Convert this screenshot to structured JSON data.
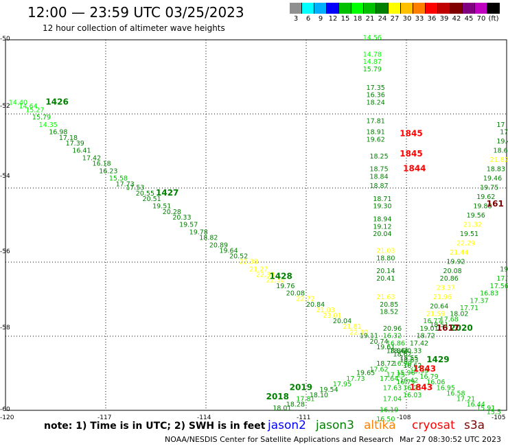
{
  "header": {
    "title": "12:00 — 23:59 UTC 03/25/2023",
    "subtitle": "12 hour collection of altimeter wave heights"
  },
  "legend": {
    "colors": [
      "#909090",
      "#00ffff",
      "#00b0ff",
      "#0000ff",
      "#00c000",
      "#00ff00",
      "#00c000",
      "#008000",
      "#ffff00",
      "#ffc000",
      "#ff8000",
      "#ff0000",
      "#c00000",
      "#800000",
      "#800080",
      "#c000c0",
      "#000000"
    ],
    "labels": [
      "3",
      "6",
      "9",
      "12",
      "15",
      "18",
      "21",
      "24",
      "27",
      "30",
      "33",
      "36",
      "39",
      "42",
      "45",
      "70",
      "(ft)"
    ]
  },
  "axes": {
    "y_labels": [
      "-50",
      "-52",
      "-54",
      "-56",
      "-58",
      "-60"
    ],
    "x_labels": [
      "-120",
      "-117",
      "-114",
      "-111",
      "-108",
      "-105"
    ]
  },
  "footer": {
    "note": "note: 1) Time is in UTC; 2) SWH is in feet",
    "satellites": [
      {
        "name": "jason2",
        "color": "#0000ff"
      },
      {
        "name": "jason3",
        "color": "#008000"
      },
      {
        "name": "altika",
        "color": "#ff8000"
      },
      {
        "name": "cryosat",
        "color": "#ff0000"
      },
      {
        "name": "s3a",
        "color": "#800000"
      }
    ],
    "credit": "NOAA/NESDIS Center for Satellite Applications and Research",
    "timestamp": "Mar 27 08:30:52 UTC 2023"
  },
  "chart_data": {
    "type": "scatter",
    "xlim": [
      -120,
      -105
    ],
    "ylim": [
      -60,
      -50
    ],
    "grid": true,
    "time_labels": [
      {
        "text": "1426",
        "lon": -118.8,
        "lat": -51.75,
        "color": "#008000"
      },
      {
        "text": "1427",
        "lon": -115.5,
        "lat": -54.2,
        "color": "#008000"
      },
      {
        "text": "1428",
        "lon": -112.1,
        "lat": -56.45,
        "color": "#008000"
      },
      {
        "text": "1429",
        "lon": -107.4,
        "lat": -58.7,
        "color": "#008000"
      },
      {
        "text": "2018",
        "lon": -112.2,
        "lat": -59.7,
        "color": "#008000"
      },
      {
        "text": "2019",
        "lon": -111.5,
        "lat": -59.45,
        "color": "#008000"
      },
      {
        "text": "2020",
        "lon": -106.7,
        "lat": -57.85,
        "color": "#008000"
      },
      {
        "text": "1845",
        "lon": -108.2,
        "lat": -52.6,
        "color": "#ff0000"
      },
      {
        "text": "1845",
        "lon": -108.2,
        "lat": -53.15,
        "color": "#ff0000"
      },
      {
        "text": "1844",
        "lon": -108.1,
        "lat": -53.55,
        "color": "#ff0000"
      },
      {
        "text": "1843",
        "lon": -107.8,
        "lat": -58.95,
        "color": "#ff0000"
      },
      {
        "text": "1843",
        "lon": -107.9,
        "lat": -59.45,
        "color": "#ff0000"
      },
      {
        "text": "1617",
        "lon": -107.1,
        "lat": -57.85,
        "color": "#800000"
      },
      {
        "text": "161",
        "lon": -105.6,
        "lat": -54.5,
        "color": "#800000"
      }
    ],
    "points": [
      {
        "lon": -119.9,
        "lat": -51.75,
        "v": "14.40",
        "color": "#00ff00"
      },
      {
        "lon": -119.6,
        "lat": -51.85,
        "v": "14.64",
        "color": "#00ff00"
      },
      {
        "lon": -119.4,
        "lat": -51.95,
        "v": "15.27",
        "color": "#00ff00"
      },
      {
        "lon": -119.2,
        "lat": -52.15,
        "v": "15.79",
        "color": "#00c000"
      },
      {
        "lon": -119.0,
        "lat": -52.35,
        "v": "14.35",
        "color": "#00ff00"
      },
      {
        "lon": -118.7,
        "lat": -52.55,
        "v": "16.98",
        "color": "#008000"
      },
      {
        "lon": -118.4,
        "lat": -52.7,
        "v": "17.18",
        "color": "#008000"
      },
      {
        "lon": -118.2,
        "lat": -52.85,
        "v": "17.39",
        "color": "#008000"
      },
      {
        "lon": -118.0,
        "lat": -53.05,
        "v": "16.41",
        "color": "#008000"
      },
      {
        "lon": -117.7,
        "lat": -53.25,
        "v": "17.42",
        "color": "#008000"
      },
      {
        "lon": -117.4,
        "lat": -53.4,
        "v": "16.18",
        "color": "#008000"
      },
      {
        "lon": -117.2,
        "lat": -53.6,
        "v": "16.23",
        "color": "#008000"
      },
      {
        "lon": -116.9,
        "lat": -53.8,
        "v": "15.58",
        "color": "#00c000"
      },
      {
        "lon": -116.7,
        "lat": -53.95,
        "v": "17.73",
        "color": "#008000"
      },
      {
        "lon": -116.4,
        "lat": -54.05,
        "v": "17.53",
        "color": "#008000"
      },
      {
        "lon": -116.1,
        "lat": -54.2,
        "v": "20.55",
        "color": "#008000"
      },
      {
        "lon": -115.9,
        "lat": -54.35,
        "v": "20.51",
        "color": "#008000"
      },
      {
        "lon": -115.6,
        "lat": -54.55,
        "v": "19.51",
        "color": "#008000"
      },
      {
        "lon": -115.3,
        "lat": -54.7,
        "v": "20.28",
        "color": "#008000"
      },
      {
        "lon": -115.0,
        "lat": -54.85,
        "v": "20.33",
        "color": "#008000"
      },
      {
        "lon": -114.8,
        "lat": -55.05,
        "v": "19.57",
        "color": "#008000"
      },
      {
        "lon": -114.5,
        "lat": -55.25,
        "v": "19.78",
        "color": "#008000"
      },
      {
        "lon": -114.2,
        "lat": -55.4,
        "v": "18.82",
        "color": "#008000"
      },
      {
        "lon": -113.9,
        "lat": -55.6,
        "v": "20.89",
        "color": "#008000"
      },
      {
        "lon": -113.6,
        "lat": -55.75,
        "v": "19.64",
        "color": "#008000"
      },
      {
        "lon": -113.3,
        "lat": -55.9,
        "v": "20.52",
        "color": "#008000"
      },
      {
        "lon": -113.0,
        "lat": -56.05,
        "v": "22.38",
        "color": "#ffff00"
      },
      {
        "lon": -112.7,
        "lat": -56.25,
        "v": "21.27",
        "color": "#ffff00"
      },
      {
        "lon": -112.5,
        "lat": -56.4,
        "v": "22.33",
        "color": "#ffff00"
      },
      {
        "lon": -112.2,
        "lat": -56.55,
        "v": "22.30",
        "color": "#ffff00"
      },
      {
        "lon": -111.9,
        "lat": -56.7,
        "v": "19.76",
        "color": "#008000"
      },
      {
        "lon": -111.6,
        "lat": -56.9,
        "v": "20.08",
        "color": "#008000"
      },
      {
        "lon": -111.3,
        "lat": -57.05,
        "v": "22.72",
        "color": "#ffff00"
      },
      {
        "lon": -111.0,
        "lat": -57.2,
        "v": "20.84",
        "color": "#008000"
      },
      {
        "lon": -110.7,
        "lat": -57.35,
        "v": "21.03",
        "color": "#ffff00"
      },
      {
        "lon": -110.5,
        "lat": -57.5,
        "v": "23.01",
        "color": "#ffff00"
      },
      {
        "lon": -110.2,
        "lat": -57.65,
        "v": "20.04",
        "color": "#008000"
      },
      {
        "lon": -109.9,
        "lat": -57.8,
        "v": "21.81",
        "color": "#ffff00"
      },
      {
        "lon": -109.7,
        "lat": -57.95,
        "v": "22.30",
        "color": "#ffff00"
      },
      {
        "lon": -109.4,
        "lat": -58.05,
        "v": "19.11",
        "color": "#008000"
      },
      {
        "lon": -109.1,
        "lat": -58.2,
        "v": "20.74",
        "color": "#008000"
      },
      {
        "lon": -108.9,
        "lat": -58.35,
        "v": "19.61",
        "color": "#008000"
      },
      {
        "lon": -108.6,
        "lat": -58.45,
        "v": "18.86",
        "color": "#008000"
      },
      {
        "lon": -108.4,
        "lat": -58.55,
        "v": "18.62",
        "color": "#008000"
      },
      {
        "lon": -108.2,
        "lat": -58.7,
        "v": "18.63",
        "color": "#008000"
      },
      {
        "lon": -108.1,
        "lat": -58.85,
        "v": "16.62",
        "color": "#008000"
      },
      {
        "lon": -107.9,
        "lat": -59.0,
        "v": "15.99",
        "color": "#00c000"
      },
      {
        "lon": -107.6,
        "lat": -59.15,
        "v": "16.79",
        "color": "#00c000"
      },
      {
        "lon": -107.4,
        "lat": -59.3,
        "v": "16.06",
        "color": "#00c000"
      },
      {
        "lon": -107.1,
        "lat": -59.45,
        "v": "16.95",
        "color": "#00c000"
      },
      {
        "lon": -106.8,
        "lat": -59.6,
        "v": "16.58",
        "color": "#00c000"
      },
      {
        "lon": -106.5,
        "lat": -59.75,
        "v": "17.21",
        "color": "#00c000"
      },
      {
        "lon": -106.2,
        "lat": -59.9,
        "v": "16.44",
        "color": "#00c000"
      },
      {
        "lon": -105.9,
        "lat": -60.0,
        "v": "15.91",
        "color": "#00c000"
      },
      {
        "lon": -105.6,
        "lat": -60.1,
        "v": "15.5",
        "color": "#00c000"
      },
      {
        "lon": -109.3,
        "lat": -50.0,
        "v": "14.56",
        "color": "#00ff00"
      },
      {
        "lon": -109.3,
        "lat": -50.45,
        "v": "14.78",
        "color": "#00ff00"
      },
      {
        "lon": -109.3,
        "lat": -50.65,
        "v": "14.87",
        "color": "#00ff00"
      },
      {
        "lon": -109.3,
        "lat": -50.85,
        "v": "15.79",
        "color": "#00c000"
      },
      {
        "lon": -109.2,
        "lat": -51.35,
        "v": "17.35",
        "color": "#008000"
      },
      {
        "lon": -109.2,
        "lat": -51.55,
        "v": "16.36",
        "color": "#008000"
      },
      {
        "lon": -109.2,
        "lat": -51.75,
        "v": "18.24",
        "color": "#008000"
      },
      {
        "lon": -109.2,
        "lat": -52.25,
        "v": "17.81",
        "color": "#008000"
      },
      {
        "lon": -109.2,
        "lat": -52.55,
        "v": "18.91",
        "color": "#008000"
      },
      {
        "lon": -109.2,
        "lat": -52.75,
        "v": "19.62",
        "color": "#008000"
      },
      {
        "lon": -109.1,
        "lat": -53.2,
        "v": "18.25",
        "color": "#008000"
      },
      {
        "lon": -109.1,
        "lat": -53.55,
        "v": "18.75",
        "color": "#008000"
      },
      {
        "lon": -109.1,
        "lat": -53.75,
        "v": "18.84",
        "color": "#008000"
      },
      {
        "lon": -109.1,
        "lat": -54.0,
        "v": "18.87",
        "color": "#008000"
      },
      {
        "lon": -109.0,
        "lat": -54.35,
        "v": "18.71",
        "color": "#008000"
      },
      {
        "lon": -109.0,
        "lat": -54.55,
        "v": "19.30",
        "color": "#008000"
      },
      {
        "lon": -109.0,
        "lat": -54.9,
        "v": "18.94",
        "color": "#008000"
      },
      {
        "lon": -109.0,
        "lat": -55.1,
        "v": "19.12",
        "color": "#008000"
      },
      {
        "lon": -109.0,
        "lat": -55.3,
        "v": "20.04",
        "color": "#008000"
      },
      {
        "lon": -108.9,
        "lat": -55.75,
        "v": "21.03",
        "color": "#ffff00"
      },
      {
        "lon": -108.9,
        "lat": -55.95,
        "v": "18.80",
        "color": "#008000"
      },
      {
        "lon": -108.9,
        "lat": -56.3,
        "v": "20.14",
        "color": "#008000"
      },
      {
        "lon": -108.9,
        "lat": -56.5,
        "v": "20.41",
        "color": "#008000"
      },
      {
        "lon": -108.9,
        "lat": -57.0,
        "v": "21.63",
        "color": "#ffff00"
      },
      {
        "lon": -108.8,
        "lat": -57.2,
        "v": "20.85",
        "color": "#008000"
      },
      {
        "lon": -108.8,
        "lat": -57.4,
        "v": "18.52",
        "color": "#008000"
      },
      {
        "lon": -108.7,
        "lat": -57.85,
        "v": "20.96",
        "color": "#008000"
      },
      {
        "lon": -108.7,
        "lat": -58.05,
        "v": "16.32",
        "color": "#00c000"
      },
      {
        "lon": -108.6,
        "lat": -58.25,
        "v": "16.86",
        "color": "#00c000"
      },
      {
        "lon": -108.5,
        "lat": -58.45,
        "v": "18.44",
        "color": "#008000"
      },
      {
        "lon": -108.4,
        "lat": -58.8,
        "v": "16.90",
        "color": "#00c000"
      },
      {
        "lon": -108.3,
        "lat": -59.05,
        "v": "15.96",
        "color": "#00c000"
      },
      {
        "lon": -108.2,
        "lat": -59.25,
        "v": "16.42",
        "color": "#00c000"
      },
      {
        "lon": -108.1,
        "lat": -59.45,
        "v": "16.21",
        "color": "#00c000"
      },
      {
        "lon": -108.1,
        "lat": -59.65,
        "v": "16.03",
        "color": "#00c000"
      },
      {
        "lon": -105.3,
        "lat": -52.35,
        "v": "17",
        "color": "#008000"
      },
      {
        "lon": -105.2,
        "lat": -52.55,
        "v": "17.71",
        "color": "#008000"
      },
      {
        "lon": -105.3,
        "lat": -52.8,
        "v": "19.4",
        "color": "#008000"
      },
      {
        "lon": -105.4,
        "lat": -53.05,
        "v": "18.6",
        "color": "#008000"
      },
      {
        "lon": -105.5,
        "lat": -53.3,
        "v": "21.82",
        "color": "#ffff00"
      },
      {
        "lon": -105.6,
        "lat": -53.55,
        "v": "18.83",
        "color": "#008000"
      },
      {
        "lon": -105.7,
        "lat": -53.8,
        "v": "19.46",
        "color": "#008000"
      },
      {
        "lon": -105.8,
        "lat": -54.05,
        "v": "19.75",
        "color": "#008000"
      },
      {
        "lon": -105.9,
        "lat": -54.3,
        "v": "19.62",
        "color": "#008000"
      },
      {
        "lon": -106.0,
        "lat": -54.55,
        "v": "19.88",
        "color": "#008000"
      },
      {
        "lon": -106.2,
        "lat": -54.8,
        "v": "19.56",
        "color": "#008000"
      },
      {
        "lon": -106.3,
        "lat": -55.05,
        "v": "21.32",
        "color": "#ffff00"
      },
      {
        "lon": -106.4,
        "lat": -55.3,
        "v": "19.51",
        "color": "#008000"
      },
      {
        "lon": -106.5,
        "lat": -55.55,
        "v": "22.29",
        "color": "#ffff00"
      },
      {
        "lon": -106.7,
        "lat": -55.8,
        "v": "21.44",
        "color": "#ffff00"
      },
      {
        "lon": -106.8,
        "lat": -56.05,
        "v": "19.92",
        "color": "#008000"
      },
      {
        "lon": -106.9,
        "lat": -56.3,
        "v": "20.08",
        "color": "#008000"
      },
      {
        "lon": -107.0,
        "lat": -56.5,
        "v": "20.86",
        "color": "#008000"
      },
      {
        "lon": -107.1,
        "lat": -56.75,
        "v": "23.37",
        "color": "#ffff00"
      },
      {
        "lon": -107.2,
        "lat": -57.0,
        "v": "21.96",
        "color": "#ffff00"
      },
      {
        "lon": -107.3,
        "lat": -57.25,
        "v": "20.64",
        "color": "#008000"
      },
      {
        "lon": -107.4,
        "lat": -57.45,
        "v": "21.59",
        "color": "#ffff00"
      },
      {
        "lon": -107.5,
        "lat": -57.65,
        "v": "16.77",
        "color": "#00c000"
      },
      {
        "lon": -107.6,
        "lat": -57.85,
        "v": "19.01",
        "color": "#008000"
      },
      {
        "lon": -107.7,
        "lat": -58.05,
        "v": "18.72",
        "color": "#008000"
      },
      {
        "lon": -107.9,
        "lat": -58.25,
        "v": "17.42",
        "color": "#008000"
      },
      {
        "lon": -108.1,
        "lat": -58.45,
        "v": "20.33",
        "color": "#008000"
      },
      {
        "lon": -108.2,
        "lat": -58.65,
        "v": "18.55",
        "color": "#008000"
      },
      {
        "lon": -105.2,
        "lat": -56.25,
        "v": "19",
        "color": "#008000"
      },
      {
        "lon": -105.3,
        "lat": -56.5,
        "v": "17.70",
        "color": "#00c000"
      },
      {
        "lon": -105.5,
        "lat": -56.7,
        "v": "17.56",
        "color": "#00c000"
      },
      {
        "lon": -105.8,
        "lat": -56.9,
        "v": "16.83",
        "color": "#00c000"
      },
      {
        "lon": -106.1,
        "lat": -57.1,
        "v": "17.37",
        "color": "#00c000"
      },
      {
        "lon": -106.4,
        "lat": -57.3,
        "v": "17.71",
        "color": "#00c000"
      },
      {
        "lon": -106.7,
        "lat": -57.45,
        "v": "18.02",
        "color": "#008000"
      },
      {
        "lon": -107.0,
        "lat": -57.6,
        "v": "17.68",
        "color": "#00c000"
      },
      {
        "lon": -107.3,
        "lat": -57.75,
        "v": "18.51",
        "color": "#008000"
      },
      {
        "lon": -108.6,
        "lat": -59.1,
        "v": "17.25",
        "color": "#00c000"
      },
      {
        "lon": -108.3,
        "lat": -59.3,
        "v": "16.79",
        "color": "#00c000"
      },
      {
        "lon": -108.7,
        "lat": -59.45,
        "v": "17.63",
        "color": "#00c000"
      },
      {
        "lon": -108.7,
        "lat": -59.75,
        "v": "17.04",
        "color": "#00c000"
      },
      {
        "lon": -108.8,
        "lat": -60.05,
        "v": "16.19",
        "color": "#00c000"
      },
      {
        "lon": -108.9,
        "lat": -60.3,
        "v": "16.50",
        "color": "#00c000"
      },
      {
        "lon": -108.8,
        "lat": -59.2,
        "v": "17.64",
        "color": "#00c000"
      },
      {
        "lon": -108.9,
        "lat": -58.8,
        "v": "18.72",
        "color": "#008000"
      },
      {
        "lon": -109.1,
        "lat": -58.95,
        "v": "17.62",
        "color": "#00c000"
      },
      {
        "lon": -109.5,
        "lat": -59.05,
        "v": "19.65",
        "color": "#008000"
      },
      {
        "lon": -109.8,
        "lat": -59.2,
        "v": "17.73",
        "color": "#00c000"
      },
      {
        "lon": -110.2,
        "lat": -59.35,
        "v": "17.95",
        "color": "#00c000"
      },
      {
        "lon": -110.6,
        "lat": -59.5,
        "v": "19.54",
        "color": "#008000"
      },
      {
        "lon": -110.9,
        "lat": -59.65,
        "v": "18.10",
        "color": "#008000"
      },
      {
        "lon": -111.3,
        "lat": -59.75,
        "v": "17.81",
        "color": "#00c000"
      },
      {
        "lon": -111.6,
        "lat": -59.9,
        "v": "18.28",
        "color": "#008000"
      },
      {
        "lon": -112.0,
        "lat": -60.0,
        "v": "18.01",
        "color": "#008000"
      }
    ]
  }
}
